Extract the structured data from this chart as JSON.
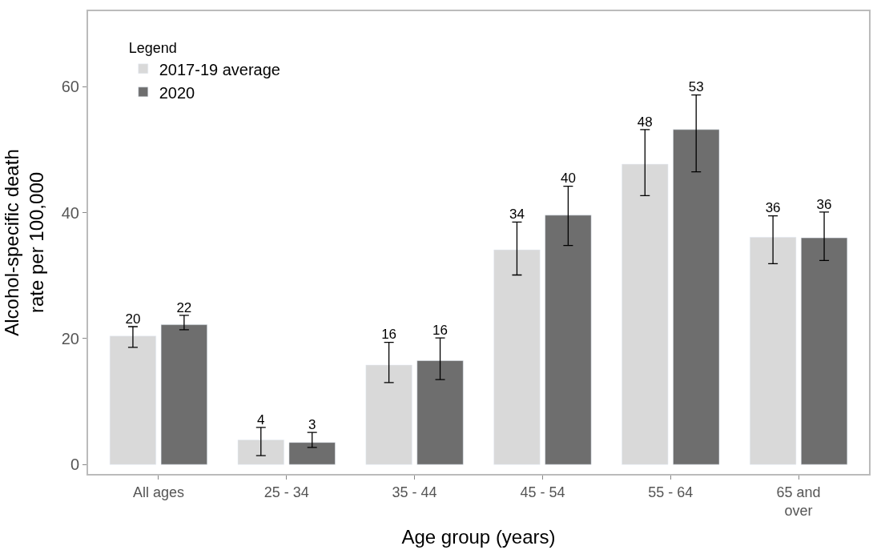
{
  "chart_data": {
    "type": "bar",
    "xlabel": "Age group (years)",
    "ylabel": "Alcohol-specific death rate per 100,000",
    "legend_title": "Legend",
    "categories": [
      "All ages",
      "25 - 34",
      "35 - 44",
      "45 - 54",
      "55 - 64",
      "65 and over"
    ],
    "series": [
      {
        "name": "2017-19 average",
        "color": "#d9d9d9",
        "values": [
          20.4,
          3.9,
          15.8,
          34.1,
          47.7,
          36.1
        ],
        "errors": [
          [
            18.6,
            21.9
          ],
          [
            1.4,
            5.9
          ],
          [
            13.0,
            19.4
          ],
          [
            30.1,
            38.5
          ],
          [
            42.7,
            53.2
          ],
          [
            31.9,
            39.5
          ]
        ],
        "value_labels": [
          "20",
          "4",
          "16",
          "34",
          "48",
          "36"
        ]
      },
      {
        "name": "2020",
        "color": "#6e6e6e",
        "values": [
          22.2,
          3.5,
          16.5,
          39.6,
          53.2,
          36.0
        ],
        "errors": [
          [
            21.4,
            23.7
          ],
          [
            2.7,
            5.1
          ],
          [
            13.5,
            20.1
          ],
          [
            34.8,
            44.2
          ],
          [
            46.5,
            58.7
          ],
          [
            32.4,
            40.1
          ]
        ],
        "value_labels": [
          "22",
          "3",
          "16",
          "40",
          "53",
          "36"
        ]
      }
    ],
    "ylim": [
      -1.5,
      72
    ],
    "yticks": [
      0,
      20,
      40,
      60
    ],
    "legend": "top left"
  }
}
